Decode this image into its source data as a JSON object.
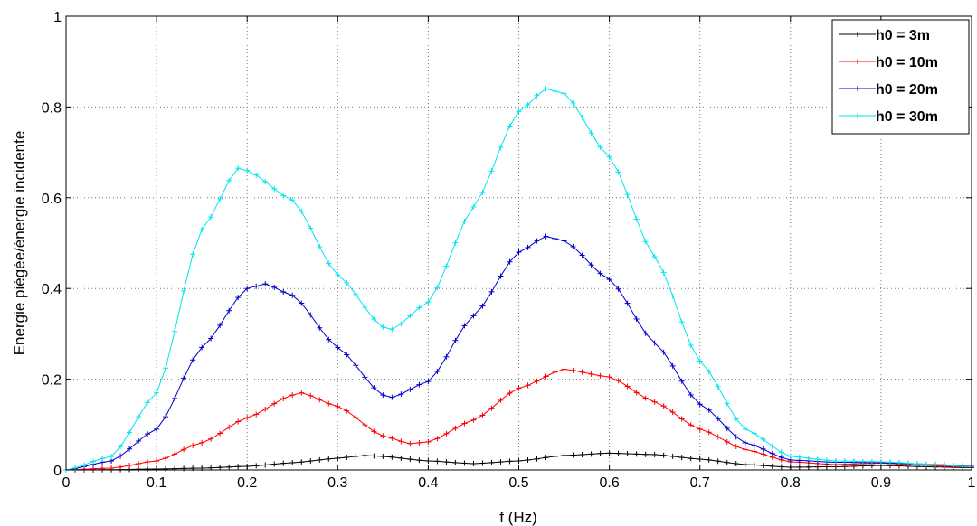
{
  "chart_data": {
    "type": "line",
    "title": "",
    "xlabel": "f (Hz)",
    "ylabel": "Energie piégée/énergie incidente",
    "xlim": [
      0,
      1
    ],
    "ylim": [
      0,
      1
    ],
    "xticks": [
      "0",
      "0.1",
      "0.2",
      "0.3",
      "0.4",
      "0.5",
      "0.6",
      "0.7",
      "0.8",
      "0.9",
      "1"
    ],
    "yticks": [
      "0",
      "0.2",
      "0.4",
      "0.6",
      "0.8",
      "1"
    ],
    "grid": true,
    "legend_position": "top-right",
    "marker": "+",
    "sample_step": 0.01,
    "series": [
      {
        "name": "h0 = 3m",
        "color": "#000000",
        "x": [
          0,
          0.05,
          0.1,
          0.15,
          0.2,
          0.25,
          0.3,
          0.33,
          0.35,
          0.4,
          0.45,
          0.5,
          0.55,
          0.6,
          0.65,
          0.7,
          0.75,
          0.8,
          0.85,
          0.9,
          0.95,
          1.0
        ],
        "y": [
          0,
          0.0005,
          0.002,
          0.004,
          0.008,
          0.016,
          0.026,
          0.032,
          0.03,
          0.02,
          0.014,
          0.02,
          0.032,
          0.037,
          0.034,
          0.024,
          0.012,
          0.006,
          0.007,
          0.01,
          0.007,
          0.005
        ]
      },
      {
        "name": "h0 = 10m",
        "color": "#ff0000",
        "x": [
          0,
          0.05,
          0.1,
          0.15,
          0.2,
          0.25,
          0.26,
          0.3,
          0.35,
          0.38,
          0.4,
          0.45,
          0.5,
          0.55,
          0.6,
          0.65,
          0.7,
          0.75,
          0.8,
          0.85,
          0.9,
          0.95,
          1.0
        ],
        "y": [
          0,
          0.004,
          0.02,
          0.06,
          0.115,
          0.165,
          0.17,
          0.14,
          0.075,
          0.058,
          0.062,
          0.11,
          0.18,
          0.222,
          0.205,
          0.15,
          0.09,
          0.045,
          0.018,
          0.012,
          0.015,
          0.01,
          0.006
        ]
      },
      {
        "name": "h0 = 20m",
        "color": "#0000cc",
        "x": [
          0,
          0.05,
          0.1,
          0.15,
          0.2,
          0.22,
          0.25,
          0.3,
          0.35,
          0.36,
          0.4,
          0.45,
          0.5,
          0.53,
          0.55,
          0.6,
          0.65,
          0.7,
          0.75,
          0.8,
          0.85,
          0.9,
          0.95,
          1.0
        ],
        "y": [
          0,
          0.02,
          0.09,
          0.27,
          0.4,
          0.41,
          0.385,
          0.27,
          0.165,
          0.16,
          0.195,
          0.34,
          0.48,
          0.515,
          0.505,
          0.42,
          0.28,
          0.145,
          0.06,
          0.022,
          0.017,
          0.016,
          0.013,
          0.008
        ]
      },
      {
        "name": "h0 = 30m",
        "color": "#00e5ee",
        "x": [
          0,
          0.05,
          0.1,
          0.15,
          0.19,
          0.2,
          0.25,
          0.3,
          0.35,
          0.36,
          0.4,
          0.45,
          0.5,
          0.53,
          0.55,
          0.6,
          0.65,
          0.7,
          0.75,
          0.8,
          0.85,
          0.9,
          0.95,
          1.0
        ],
        "y": [
          0,
          0.03,
          0.17,
          0.53,
          0.665,
          0.66,
          0.595,
          0.43,
          0.315,
          0.31,
          0.37,
          0.58,
          0.79,
          0.84,
          0.83,
          0.69,
          0.47,
          0.24,
          0.09,
          0.03,
          0.02,
          0.018,
          0.013,
          0.007
        ]
      }
    ]
  }
}
